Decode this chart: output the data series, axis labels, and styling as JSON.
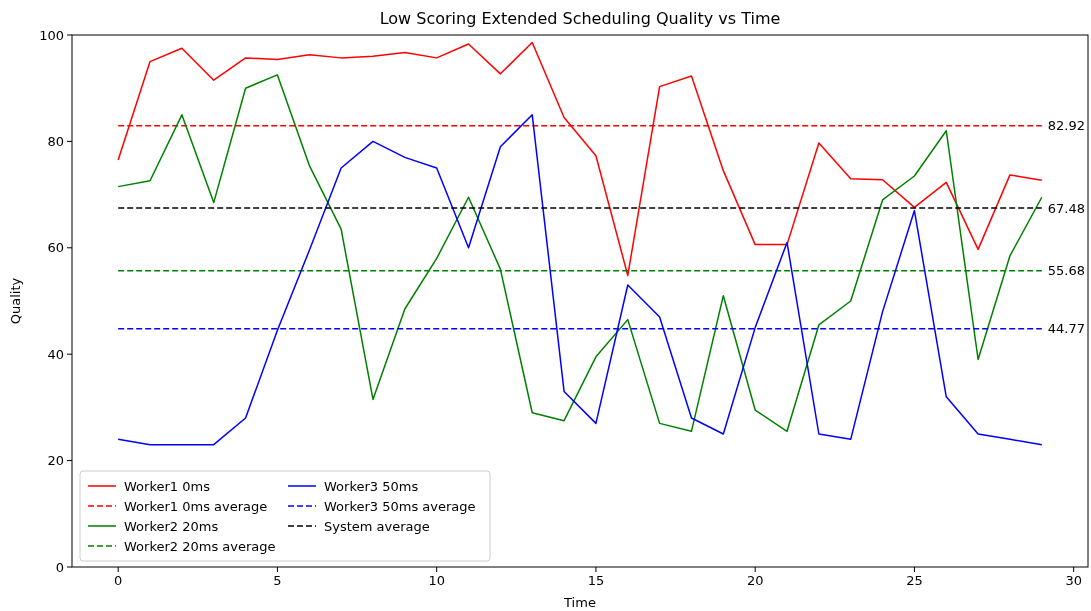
{
  "chart_data": {
    "type": "line",
    "title": "Low Scoring Extended Scheduling Quality vs Time",
    "xlabel": "Time",
    "ylabel": "Quality",
    "x": [
      0,
      1,
      2,
      3,
      4,
      5,
      6,
      7,
      8,
      9,
      10,
      11,
      12,
      13,
      14,
      15,
      16,
      17,
      18,
      19,
      20,
      21,
      22,
      23,
      24,
      25,
      26,
      27,
      28,
      29
    ],
    "xlim": [
      -1.45,
      30.45
    ],
    "xticks": [
      0,
      5,
      10,
      15,
      20,
      25,
      30
    ],
    "ylim": [
      0,
      100
    ],
    "yticks": [
      0,
      20,
      40,
      60,
      80,
      100
    ],
    "series": [
      {
        "name": "Worker1 0ms",
        "color": "#ff0000",
        "values": [
          76.5,
          95,
          97.5,
          91.5,
          95.7,
          95.4,
          96.3,
          95.7,
          96,
          96.7,
          95.7,
          98.3,
          92.7,
          98.6,
          84.5,
          77.3,
          54.8,
          90.3,
          92.3,
          74.5,
          60.6,
          60.6,
          79.7,
          73,
          72.8,
          67.6,
          72.3,
          59.7,
          73.7,
          72.7
        ]
      },
      {
        "name": "Worker1 0ms average",
        "color": "#ff0000",
        "line_style": "dashed",
        "values": [
          82.92,
          82.92,
          82.92,
          82.92,
          82.92,
          82.92,
          82.92,
          82.92,
          82.92,
          82.92,
          82.92,
          82.92,
          82.92,
          82.92,
          82.92,
          82.92,
          82.92,
          82.92,
          82.92,
          82.92,
          82.92,
          82.92,
          82.92,
          82.92,
          82.92,
          82.92,
          82.92,
          82.92,
          82.92,
          82.92
        ],
        "value_labels": [
          null,
          null,
          null,
          null,
          null,
          null,
          null,
          null,
          null,
          null,
          null,
          null,
          null,
          null,
          null,
          null,
          null,
          null,
          null,
          null,
          null,
          null,
          null,
          null,
          null,
          null,
          null,
          null,
          null,
          "82.92"
        ]
      },
      {
        "name": "Worker2 20ms",
        "color": "#008000",
        "values": [
          71.5,
          72.6,
          85,
          68.5,
          90,
          92.5,
          75.5,
          63.5,
          31.5,
          48.5,
          58,
          69.5,
          56,
          29,
          27.5,
          39.5,
          46.5,
          27,
          25.5,
          51,
          29.5,
          25.5,
          45.5,
          50,
          69,
          73.5,
          82,
          39,
          58.5,
          69.5
        ]
      },
      {
        "name": "Worker2 20ms average",
        "color": "#008000",
        "line_style": "dashed",
        "values": [
          55.68,
          55.68,
          55.68,
          55.68,
          55.68,
          55.68,
          55.68,
          55.68,
          55.68,
          55.68,
          55.68,
          55.68,
          55.68,
          55.68,
          55.68,
          55.68,
          55.68,
          55.68,
          55.68,
          55.68,
          55.68,
          55.68,
          55.68,
          55.68,
          55.68,
          55.68,
          55.68,
          55.68,
          55.68,
          55.68
        ],
        "value_labels": [
          null,
          null,
          null,
          null,
          null,
          null,
          null,
          null,
          null,
          null,
          null,
          null,
          null,
          null,
          null,
          null,
          null,
          null,
          null,
          null,
          null,
          null,
          null,
          null,
          null,
          null,
          null,
          null,
          null,
          "55.68"
        ]
      },
      {
        "name": "Worker3 50ms",
        "color": "#0000ff",
        "values": [
          24,
          23,
          23,
          23,
          28,
          44.5,
          59.5,
          75,
          80,
          77,
          75,
          60,
          79,
          85,
          33,
          27,
          53,
          47,
          28,
          25,
          45,
          61,
          25,
          24,
          48,
          67,
          32,
          25,
          24,
          23
        ]
      },
      {
        "name": "Worker3 50ms average",
        "color": "#0000ff",
        "line_style": "dashed",
        "values": [
          44.77,
          44.77,
          44.77,
          44.77,
          44.77,
          44.77,
          44.77,
          44.77,
          44.77,
          44.77,
          44.77,
          44.77,
          44.77,
          44.77,
          44.77,
          44.77,
          44.77,
          44.77,
          44.77,
          44.77,
          44.77,
          44.77,
          44.77,
          44.77,
          44.77,
          44.77,
          44.77,
          44.77,
          44.77,
          44.77
        ],
        "value_labels": [
          null,
          null,
          null,
          null,
          null,
          null,
          null,
          null,
          null,
          null,
          null,
          null,
          null,
          null,
          null,
          null,
          null,
          null,
          null,
          null,
          null,
          null,
          null,
          null,
          null,
          null,
          null,
          null,
          null,
          "44.77"
        ]
      },
      {
        "name": "System average",
        "color": "#000000",
        "line_style": "dashed",
        "values": [
          67.48,
          67.48,
          67.48,
          67.48,
          67.48,
          67.48,
          67.48,
          67.48,
          67.48,
          67.48,
          67.48,
          67.48,
          67.48,
          67.48,
          67.48,
          67.48,
          67.48,
          67.48,
          67.48,
          67.48,
          67.48,
          67.48,
          67.48,
          67.48,
          67.48,
          67.48,
          67.48,
          67.48,
          67.48,
          67.48
        ],
        "value_labels": [
          null,
          null,
          null,
          null,
          null,
          null,
          null,
          null,
          null,
          null,
          null,
          null,
          null,
          null,
          null,
          null,
          null,
          null,
          null,
          null,
          null,
          null,
          null,
          null,
          null,
          null,
          null,
          null,
          null,
          "67.48"
        ]
      }
    ],
    "line_style": "solid",
    "marker": "none",
    "grid": false,
    "legend": "bottom left"
  }
}
